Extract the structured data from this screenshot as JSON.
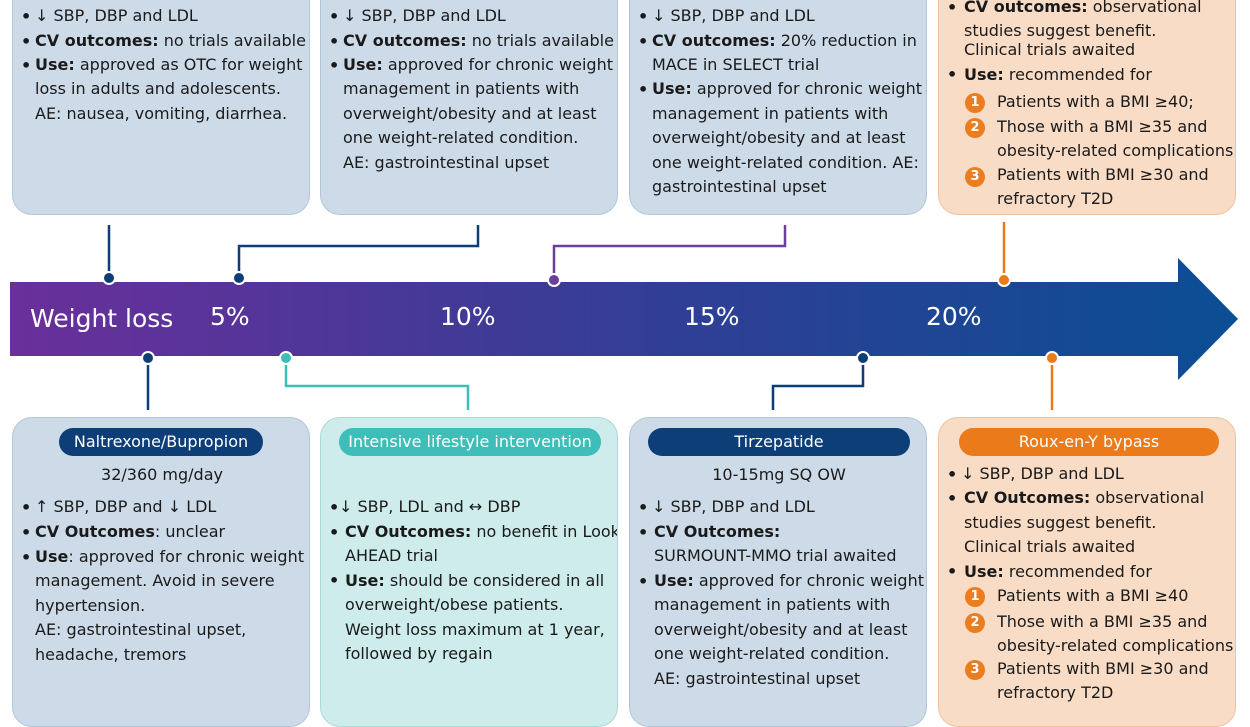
{
  "arrow": {
    "labels": [
      "Weight loss",
      "5%",
      "10%",
      "15%",
      "20%"
    ]
  },
  "top_cards": {
    "c1": {
      "l1": "SBP, DBP and LDL",
      "l2_bold": "CV outcomes:",
      "l2_rest": " no trials available",
      "l3_bold": "Use:",
      "l3_rest": " approved as OTC for weight",
      "l4": "loss in adults and adolescents.",
      "l5": "AE: nausea, vomiting, diarrhea."
    },
    "c2": {
      "l1": "SBP, DBP and LDL",
      "l2_bold": "CV outcomes:",
      "l2_rest": " no trials available",
      "l3_bold": "Use:",
      "l3_rest": " approved for chronic weight",
      "l4": "management in patients with",
      "l5": "overweight/obesity and at least",
      "l6": "one weight-related condition.",
      "l7": "AE: gastrointestinal upset"
    },
    "c3": {
      "l1": "SBP, DBP and LDL",
      "l2_bold": "CV outcomes:",
      "l2_rest": " 20% reduction in",
      "l3": "MACE in SELECT trial",
      "l4_bold": "Use:",
      "l4_rest": " approved for chronic weight",
      "l5": "management in patients with",
      "l6": "overweight/obesity and at least",
      "l7": "one weight-related condition. AE:",
      "l8": "gastrointestinal upset"
    },
    "c4": {
      "l1_bold": "CV outcomes:",
      "l1_rest": " observational",
      "l2": "studies suggest benefit.",
      "l3": "Clinical trials awaited",
      "l4_bold": "Use:",
      "l4_rest": " recommended for",
      "n1": "1",
      "n1_text": "Patients with a BMI ≥40;",
      "n2": "2",
      "n2_text_a": "Those with a BMI ≥35 and",
      "n2_text_b": "obesity-related complications",
      "n3": "3",
      "n3_text_a": "Patients with BMI ≥30 and",
      "n3_text_b": "refractory T2D"
    }
  },
  "bottom_cards": {
    "c1": {
      "title": "Naltrexone/Bupropion",
      "dose": "32/360 mg/day",
      "l1_a": "SBP, DBP and",
      "l1_b": "LDL",
      "l2_bold": "CV Outcomes",
      "l2_rest": ": unclear",
      "l3_bold": "Use",
      "l3_rest": ": approved for chronic weight",
      "l4": "management. Avoid in severe",
      "l5": "hypertension.",
      "l6": "AE: gastrointestinal upset,",
      "l7": "headache, tremors"
    },
    "c2": {
      "title": "Intensive lifestyle intervention",
      "l1_a": "SBP, LDL and",
      "l1_b": "DBP",
      "l2_bold": "CV Outcomes:",
      "l2_rest": " no benefit in Look",
      "l3": "AHEAD trial",
      "l4_bold": "Use:",
      "l4_rest": " should be considered in all",
      "l5": "overweight/obese patients.",
      "l6": "Weight loss maximum at 1 year,",
      "l7": "followed by regain"
    },
    "c3": {
      "title": "Tirzepatide",
      "dose": "10-15mg SQ OW",
      "l1": "SBP, DBP and LDL",
      "l2_bold": "CV Outcomes:",
      "l3": "SURMOUNT-MMO trial awaited",
      "l4_bold": "Use:",
      "l4_rest": " approved for chronic weight",
      "l5": "management in patients with",
      "l6": "overweight/obesity and at least",
      "l7": "one weight-related condition.",
      "l8": "AE: gastrointestinal upset"
    },
    "c4": {
      "title": "Roux-en-Y bypass",
      "l1": "SBP, DBP and LDL",
      "l2_bold": "CV Outcomes:",
      "l2_rest": " observational",
      "l3": "studies suggest benefit.",
      "l4": "Clinical trials awaited",
      "l5_bold": "Use:",
      "l5_rest": " recommended for",
      "n1": "1",
      "n1_text": "Patients with a BMI ≥40",
      "n2": "2",
      "n2_text_a": "Those with a BMI ≥35 and",
      "n2_text_b": "obesity-related complications",
      "n3": "3",
      "n3_text_a": "Patients with BMI ≥30  and",
      "n3_text_b": "refractory T2D"
    }
  },
  "symbols": {
    "down": "↓",
    "up": "↑",
    "both": "↔",
    "bullet": "•"
  },
  "colors": {
    "arrow_start": "#6a2f9b",
    "arrow_end": "#0a4e93",
    "navy": "#0d3e78",
    "teal": "#3fbdb8",
    "orange": "#ea7a1a",
    "purple": "#6b3fa0",
    "card_blue": "#cddbe8",
    "card_teal": "#cdeceb",
    "card_peach": "#f8dcc6"
  }
}
